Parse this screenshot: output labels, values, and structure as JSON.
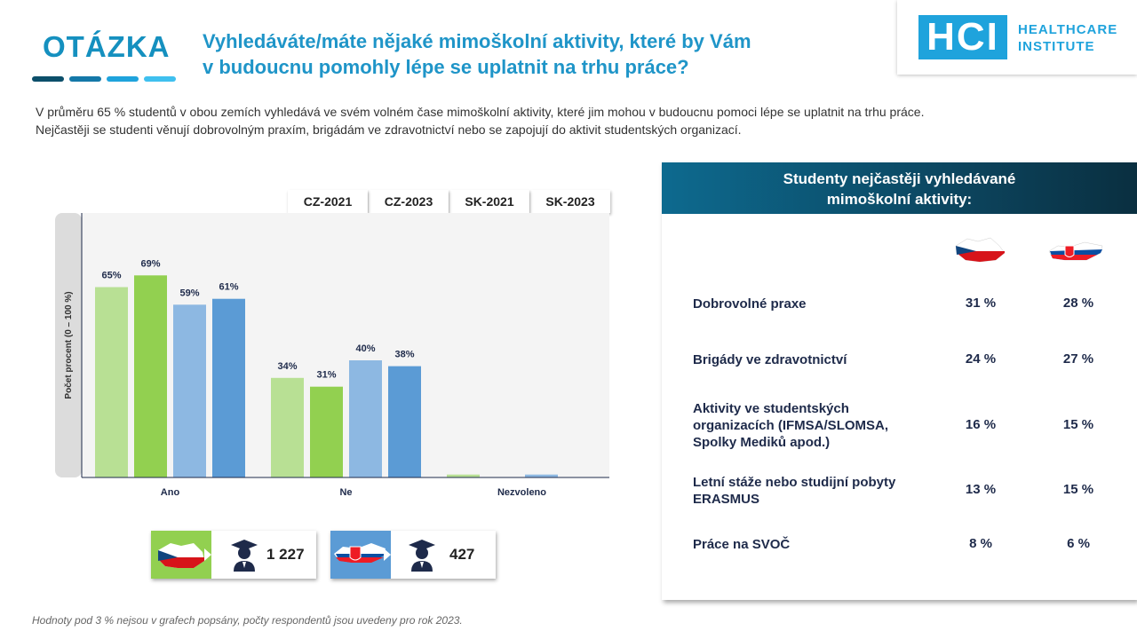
{
  "header": {
    "question_label": "OTÁZKA",
    "title_line1": "Vyhledáváte/máte nějaké mimoškolní aktivity, které by Vám",
    "title_line2": "v budoucnu pomohly lépe se uplatnit na trhu práce?"
  },
  "logo": {
    "mark": "HCI",
    "line1": "HEALTHCARE",
    "line2": "INSTITUTE",
    "color": "#1fa3dc"
  },
  "intro": {
    "line1": "V průměru 65 % studentů v obou zemích vyhledává ve svém volném čase mimoškolní aktivity, které jim mohou v budoucnu pomoci lépe se uplatnit na trhu práce.",
    "line2": "Nejčastěji se studenti věnují dobrovolným praxím, brigádám ve zdravotnictví nebo se zapojují do aktivit studentských organizací."
  },
  "chart_data": {
    "type": "bar",
    "categories": [
      "Ano",
      "Ne",
      "Nezvoleno"
    ],
    "series": [
      {
        "name": "CZ-2021",
        "values": [
          65,
          34,
          1
        ],
        "labels": [
          "65%",
          "34%",
          ""
        ],
        "color": "#b8e094"
      },
      {
        "name": "CZ-2023",
        "values": [
          69,
          31,
          0
        ],
        "labels": [
          "69%",
          "31%",
          ""
        ],
        "color": "#92d050"
      },
      {
        "name": "SK-2021",
        "values": [
          59,
          40,
          1
        ],
        "labels": [
          "59%",
          "40%",
          ""
        ],
        "color": "#8db8e2"
      },
      {
        "name": "SK-2023",
        "values": [
          61,
          38,
          0
        ],
        "labels": [
          "61%",
          "38%",
          ""
        ],
        "color": "#5b9bd5"
      }
    ],
    "ylabel": "Počet procent (0 – 100 %)",
    "ylim": [
      0,
      100
    ],
    "grid": false,
    "legend_position": "top-right"
  },
  "respondents": {
    "cz_count": "1 227",
    "sk_count": "427"
  },
  "footnote": "Hodnoty pod 3 % nejsou v grafech popsány, počty respondentů jsou uvedeny pro rok 2023.",
  "panel": {
    "title_line1": "Studenty nejčastěji vyhledávané",
    "title_line2": "mimoškolní aktivity:",
    "rows": [
      {
        "label": "Dobrovolné praxe",
        "cz": "31 %",
        "sk": "28 %"
      },
      {
        "label": "Brigády ve zdravotnictví",
        "cz": "24 %",
        "sk": "27 %"
      },
      {
        "label": "Aktivity ve studentských organizacích (IFMSA/SLOMSA, Spolky Mediků apod.)",
        "cz": "16 %",
        "sk": "15 %"
      },
      {
        "label": "Letní stáže nebo studijní pobyty ERASMUS",
        "cz": "13 %",
        "sk": "15 %"
      },
      {
        "label": "Práce na SVOČ",
        "cz": "8 %",
        "sk": "6 %"
      }
    ]
  },
  "colors": {
    "accent": "#1f95c8",
    "panel_header": "#0c4660",
    "cz_green": "#92d050",
    "sk_blue": "#5b9bd5"
  }
}
